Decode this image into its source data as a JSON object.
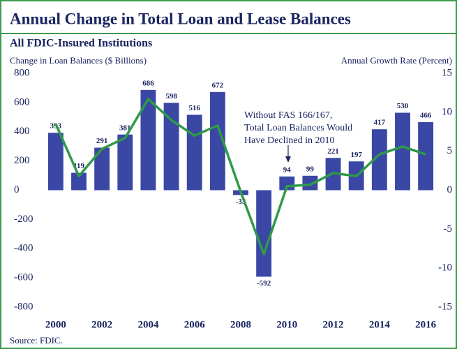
{
  "chart_data": {
    "type": "bar",
    "title": "Annual Change in Total Loan and Lease Balances",
    "subtitle": "All FDIC-Insured Institutions",
    "y_label": "Change in Loan Balances ($ Billions)",
    "y2_label": "Annual Growth Rate (Percent)",
    "source": "Source: FDIC.",
    "annotation": [
      "Without FAS 166/167,",
      "Total Loan Balances Would",
      "Have Declined in 2010"
    ],
    "x": [
      2000,
      2001,
      2002,
      2003,
      2004,
      2005,
      2006,
      2007,
      2008,
      2009,
      2010,
      2011,
      2012,
      2013,
      2014,
      2015,
      2016
    ],
    "xlim": [
      1999.4,
      2016.6
    ],
    "xticks": [
      2000,
      2002,
      2004,
      2006,
      2008,
      2010,
      2012,
      2014,
      2016
    ],
    "ylim": [
      -800,
      800
    ],
    "yticks": [
      -800,
      -600,
      -400,
      -200,
      0,
      200,
      400,
      600,
      800
    ],
    "y2lim": [
      -15,
      15
    ],
    "y2ticks": [
      -15,
      -10,
      -5,
      0,
      5,
      10,
      15
    ],
    "grid": false,
    "series": [
      {
        "type": "bar",
        "color": "#3a47a5",
        "values": [
          393,
          119,
          291,
          381,
          686,
          598,
          516,
          672,
          -33,
          -592,
          94,
          99,
          221,
          197,
          417,
          530,
          466
        ]
      },
      {
        "type": "line",
        "color": "#2f9a48",
        "axis": "y2",
        "values": [
          8.5,
          1.8,
          5.3,
          6.7,
          11.7,
          9.0,
          7.0,
          8.3,
          -0.2,
          -8.2,
          0.5,
          0.7,
          2.2,
          1.8,
          4.6,
          5.6,
          4.6
        ]
      }
    ]
  }
}
